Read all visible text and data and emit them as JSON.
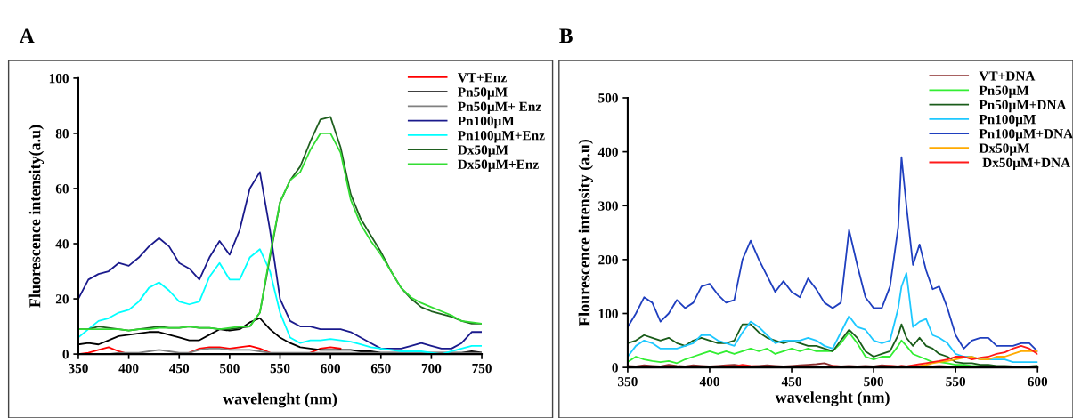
{
  "chart_data": [
    {
      "type": "line",
      "title": "A",
      "xlabel": "wavelenght (nm)",
      "ylabel": "Fluorescence intensity(a.u)",
      "xlim": [
        350,
        750
      ],
      "xticks": [
        350,
        400,
        450,
        500,
        550,
        600,
        650,
        700,
        750
      ],
      "ylim": [
        0,
        100
      ],
      "yticks": [
        0,
        20,
        40,
        60,
        80,
        100
      ],
      "grid": false,
      "legend": "top right",
      "marker": "none",
      "line_style": "solid",
      "x": [
        350,
        360,
        370,
        380,
        390,
        400,
        410,
        420,
        430,
        440,
        450,
        460,
        470,
        480,
        490,
        500,
        510,
        520,
        530,
        540,
        550,
        560,
        570,
        580,
        590,
        600,
        610,
        620,
        630,
        640,
        650,
        660,
        670,
        680,
        690,
        700,
        710,
        720,
        730,
        740,
        750
      ],
      "series": [
        {
          "name": "VT+Enz",
          "color": "#ff0000",
          "values": [
            0,
            0.5,
            1.5,
            2.5,
            1,
            0,
            null,
            null,
            null,
            null,
            null,
            0.5,
            2,
            2.5,
            2.5,
            2,
            2.5,
            3,
            2,
            0.5,
            null,
            null,
            null,
            0.5,
            2,
            2.5,
            2,
            null,
            null,
            null,
            null,
            null,
            null,
            null,
            null,
            null,
            null,
            null,
            null,
            null,
            null
          ]
        },
        {
          "name": "Pn50µM",
          "color": "#000000",
          "values": [
            3.5,
            4,
            3.5,
            5,
            6.5,
            7,
            7.5,
            8,
            8,
            7,
            6,
            5,
            5,
            7,
            9,
            8.5,
            9,
            11.5,
            13,
            9,
            6,
            4,
            2.5,
            2,
            1.5,
            1.5,
            1.5,
            1.5,
            1,
            1,
            0.5,
            0.5,
            0.5,
            0.5,
            0.5,
            0.5,
            0.5,
            0.5,
            0.5,
            1,
            0.5
          ]
        },
        {
          "name": "Pn50µM+ Enz",
          "color": "#808080",
          "values": [
            0,
            0,
            0,
            0,
            0.5,
            0.5,
            0.5,
            1,
            1.5,
            1,
            0.5,
            0.5,
            1.5,
            2,
            2,
            1.5,
            1.5,
            1.5,
            1,
            0.5,
            0.5,
            0.5,
            0.5,
            0.5,
            0.5,
            0.5,
            0.5,
            0.5,
            0.5,
            0.5,
            0.5,
            0.5,
            0.5,
            0.5,
            0.5,
            0.5,
            0.5,
            0.5,
            0.5,
            0.5,
            0.5
          ]
        },
        {
          "name": "Pn100µM",
          "color": "#1a1a8c",
          "values": [
            20,
            27,
            29,
            30,
            33,
            32,
            35,
            39,
            42,
            39,
            33,
            31,
            27,
            35,
            41,
            36,
            45,
            60,
            66,
            45,
            20,
            12,
            10,
            10,
            9,
            9,
            9,
            8,
            6,
            4,
            2,
            2,
            2,
            3,
            4,
            3,
            2,
            2,
            4,
            8,
            8
          ]
        },
        {
          "name": "Pn100µM+Enz",
          "color": "#00ffff",
          "values": [
            6,
            9,
            12,
            13,
            15,
            16,
            19,
            24,
            26,
            23,
            19,
            18,
            19,
            28,
            33,
            27,
            27,
            35,
            38,
            30,
            15,
            6,
            4,
            5,
            5,
            5.5,
            5,
            4.5,
            3.5,
            2.5,
            2,
            1.5,
            1,
            1,
            1,
            0.5,
            0,
            1,
            2,
            3,
            3
          ]
        },
        {
          "name": "Dx50µM",
          "color": "#1f5f1f",
          "values": [
            9,
            9,
            10,
            9.5,
            9,
            8.5,
            9,
            9.5,
            10,
            9.5,
            9.5,
            10,
            9.5,
            9.5,
            9,
            9,
            9.5,
            10,
            15,
            35,
            55,
            63,
            68,
            77,
            85,
            86,
            75,
            58,
            49,
            43,
            37,
            30,
            24,
            20,
            17,
            15.5,
            14.5,
            13.5,
            12,
            11,
            11
          ]
        },
        {
          "name": "Dx50µM+Enz",
          "color": "#33dd33",
          "values": [
            9,
            9,
            9,
            9,
            9,
            8.5,
            9,
            9,
            9.5,
            9.5,
            9.5,
            10,
            9.5,
            9.5,
            9,
            9.5,
            10,
            10,
            15,
            36,
            55,
            63,
            66,
            74,
            80,
            80,
            73,
            56,
            47,
            41,
            36,
            30,
            24,
            20.5,
            18.5,
            17,
            15.5,
            14,
            12,
            11.5,
            11
          ]
        }
      ]
    },
    {
      "type": "line",
      "title": "B",
      "xlabel": "wavelenght (nm)",
      "ylabel": "Flourescence intensity (a.u)",
      "xlim": [
        350,
        600
      ],
      "xticks": [
        350,
        400,
        450,
        500,
        550,
        600
      ],
      "ylim": [
        0,
        500
      ],
      "yticks": [
        0,
        100,
        200,
        300,
        400,
        500
      ],
      "grid": false,
      "legend": "top right",
      "marker": "none",
      "line_style": "solid",
      "x": [
        350,
        355,
        360,
        365,
        370,
        375,
        380,
        385,
        390,
        395,
        400,
        405,
        410,
        415,
        420,
        425,
        430,
        435,
        440,
        445,
        450,
        455,
        460,
        465,
        470,
        475,
        480,
        485,
        490,
        495,
        500,
        505,
        510,
        515,
        517,
        520,
        524,
        528,
        532,
        536,
        540,
        545,
        550,
        555,
        560,
        565,
        570,
        575,
        580,
        585,
        590,
        595,
        600
      ],
      "series": [
        {
          "name": "VT+DNA",
          "color": "#8b2d2d",
          "values": [
            3,
            2,
            4,
            3,
            2,
            5,
            3,
            2,
            4,
            3,
            2,
            3,
            4,
            5,
            3,
            2,
            3,
            4,
            3,
            2,
            3,
            4,
            5,
            6,
            8,
            3,
            2,
            3,
            2,
            3,
            2,
            4,
            3,
            2,
            3,
            2,
            3,
            2,
            3,
            2,
            3,
            2,
            2,
            3,
            null,
            null,
            null,
            null,
            null,
            null,
            null,
            null,
            null
          ]
        },
        {
          "name": "Pn50µM",
          "color": "#33ee33",
          "values": [
            10,
            20,
            15,
            12,
            10,
            12,
            8,
            15,
            20,
            25,
            30,
            25,
            30,
            25,
            30,
            35,
            30,
            35,
            25,
            30,
            35,
            30,
            35,
            30,
            30,
            30,
            45,
            65,
            45,
            20,
            15,
            20,
            20,
            40,
            50,
            40,
            25,
            20,
            15,
            10,
            10,
            8,
            5,
            5,
            3,
            3,
            2,
            2,
            null,
            null,
            null,
            null,
            null
          ]
        },
        {
          "name": "Pn50µM+DNA",
          "color": "#1a5c1a",
          "values": [
            45,
            50,
            60,
            55,
            50,
            55,
            45,
            40,
            50,
            55,
            50,
            45,
            45,
            50,
            80,
            80,
            65,
            55,
            50,
            45,
            50,
            45,
            40,
            40,
            35,
            30,
            50,
            70,
            55,
            30,
            20,
            25,
            30,
            60,
            80,
            55,
            40,
            55,
            40,
            35,
            25,
            20,
            10,
            8,
            8,
            5,
            5,
            3,
            3,
            2,
            2,
            2,
            3
          ]
        },
        {
          "name": "Pn100µM",
          "color": "#1ec8ff",
          "values": [
            20,
            40,
            50,
            45,
            35,
            35,
            35,
            40,
            45,
            60,
            60,
            50,
            45,
            40,
            65,
            85,
            75,
            60,
            45,
            50,
            50,
            50,
            55,
            50,
            40,
            35,
            65,
            95,
            75,
            70,
            50,
            45,
            50,
            110,
            150,
            175,
            75,
            85,
            90,
            60,
            55,
            45,
            25,
            20,
            20,
            15,
            15,
            15,
            15,
            10,
            10,
            10,
            10
          ]
        },
        {
          "name": "Pn100µM+DNA",
          "color": "#1f3fbf",
          "values": [
            75,
            100,
            130,
            120,
            85,
            100,
            125,
            110,
            120,
            150,
            155,
            135,
            120,
            125,
            200,
            235,
            200,
            170,
            140,
            160,
            140,
            130,
            165,
            145,
            120,
            110,
            120,
            255,
            190,
            130,
            110,
            110,
            150,
            260,
            390,
            300,
            190,
            228,
            180,
            145,
            150,
            110,
            60,
            35,
            50,
            55,
            55,
            40,
            40,
            40,
            45,
            45,
            30
          ]
        },
        {
          "name": "Dx50µM",
          "color": "#ffaa00",
          "values": [
            null,
            null,
            null,
            null,
            null,
            null,
            null,
            null,
            null,
            null,
            null,
            null,
            null,
            null,
            null,
            null,
            null,
            null,
            null,
            null,
            null,
            null,
            null,
            null,
            null,
            null,
            null,
            null,
            null,
            null,
            null,
            null,
            null,
            null,
            null,
            0,
            2,
            3,
            5,
            8,
            10,
            12,
            15,
            18,
            20,
            15,
            15,
            20,
            20,
            25,
            30,
            30,
            30
          ]
        },
        {
          "name": " Dx50µM+DNA",
          "color": "#ff1a1a",
          "values": [
            2,
            1,
            2,
            0,
            2,
            1,
            0,
            2,
            1,
            0,
            2,
            1,
            3,
            2,
            5,
            3,
            2,
            1,
            2,
            0,
            1,
            2,
            1,
            2,
            0,
            3,
            2,
            1,
            0,
            2,
            1,
            2,
            3,
            2,
            3,
            2,
            4,
            6,
            8,
            10,
            12,
            15,
            20,
            20,
            15,
            18,
            20,
            25,
            28,
            35,
            40,
            35,
            25
          ]
        }
      ]
    }
  ]
}
